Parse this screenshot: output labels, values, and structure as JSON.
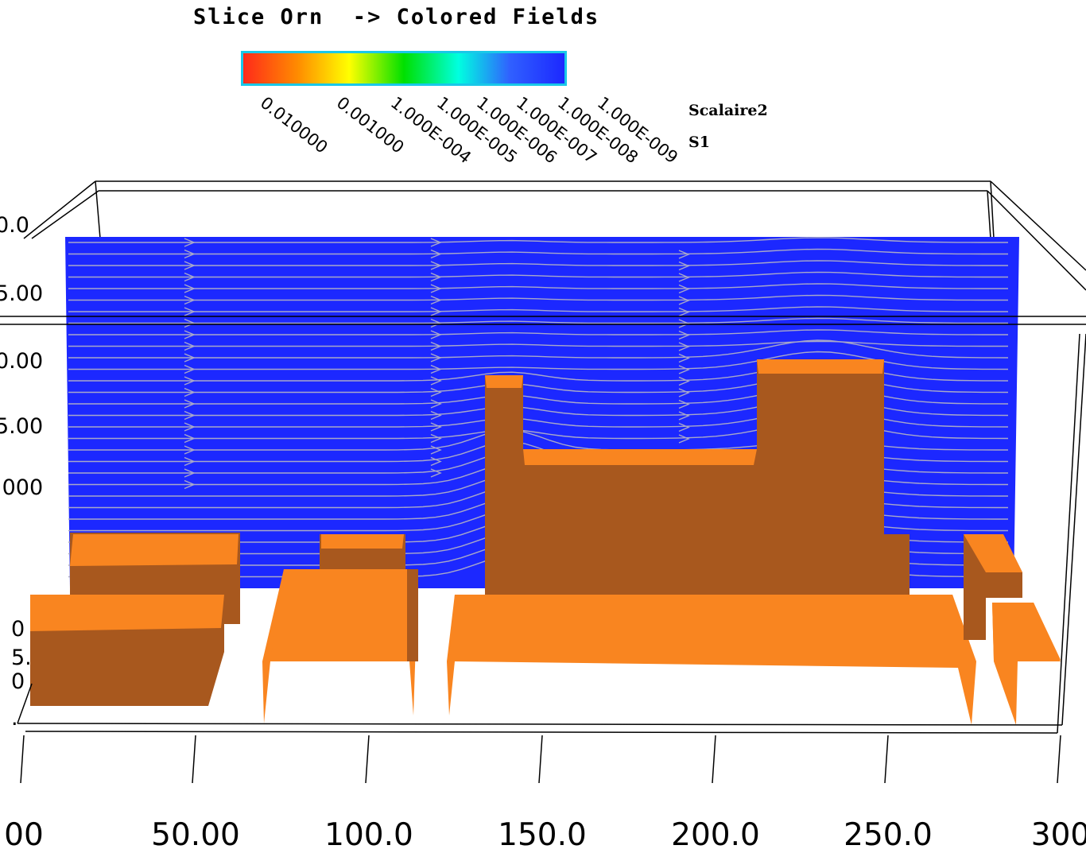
{
  "title": "Slice Orn  -> Colored Fields",
  "legend": {
    "variable": "Scalaire2",
    "slice": "S1",
    "colorbar_labels": [
      "0.010000",
      "0.001000",
      "1.000E-004",
      "1.000E-005",
      "1.000E-006",
      "1.000E-007",
      "1.000E-008",
      "1.000E-009"
    ],
    "colorbar_colors": [
      "#ff2a1a",
      "#ff8c00",
      "#ffff00",
      "#00e000",
      "#00ffe0",
      "#3060ff",
      "#1c28ff"
    ]
  },
  "axes": {
    "x_ticks": [
      "00",
      "50.00",
      "100.0",
      "150.0",
      "200.0",
      "250.0",
      "300"
    ],
    "y_ticks": [
      "0.0",
      "5.00",
      "0.00",
      "5.00",
      ".000"
    ],
    "z_ticks": [
      "0",
      "5.",
      "0",
      "."
    ]
  },
  "colors": {
    "slice": "#1c28ff",
    "streamline": "#a8a8c8",
    "building_top": "#f98520",
    "building_side": "#a8581e",
    "frame": "#000000"
  }
}
